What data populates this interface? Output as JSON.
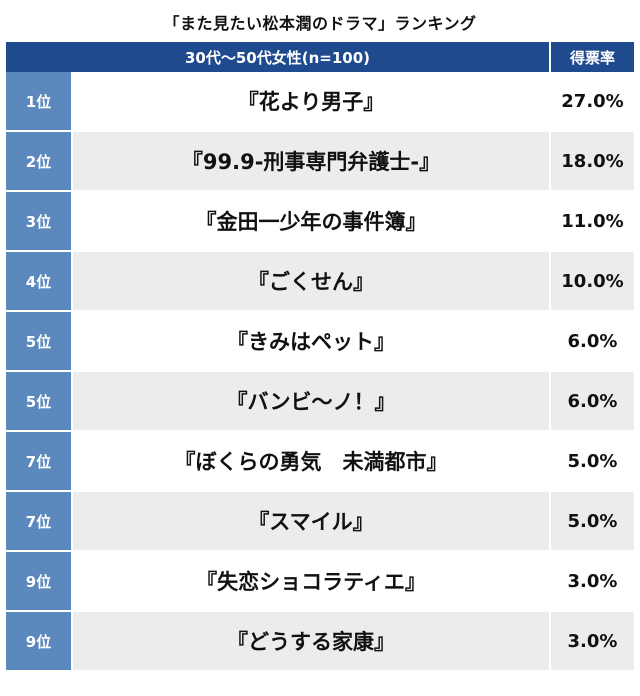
{
  "title": "「また見たい松本潤のドラマ」ランキング",
  "chart_data": {
    "type": "table",
    "title": "「また見たい松本潤のドラマ」ランキング",
    "columns": [
      "30代〜50代女性(n=100)",
      "得票率"
    ],
    "rows": [
      {
        "rank": "1位",
        "drama": "『花より男子』",
        "percent_label": "27.0%",
        "value": 27.0
      },
      {
        "rank": "2位",
        "drama": "『99.9-刑事専門弁護士-』",
        "percent_label": "18.0%",
        "value": 18.0
      },
      {
        "rank": "3位",
        "drama": "『金田一少年の事件簿』",
        "percent_label": "11.0%",
        "value": 11.0
      },
      {
        "rank": "4位",
        "drama": "『ごくせん』",
        "percent_label": "10.0%",
        "value": 10.0
      },
      {
        "rank": "5位",
        "drama": "『きみはペット』",
        "percent_label": "6.0%",
        "value": 6.0
      },
      {
        "rank": "5位",
        "drama": "『バンビ〜ノ！』",
        "percent_label": "6.0%",
        "value": 6.0
      },
      {
        "rank": "7位",
        "drama": "『ぼくらの勇気　未満都市』",
        "percent_label": "5.0%",
        "value": 5.0
      },
      {
        "rank": "7位",
        "drama": "『スマイル』",
        "percent_label": "5.0%",
        "value": 5.0
      },
      {
        "rank": "9位",
        "drama": "『失恋ショコラティエ』",
        "percent_label": "3.0%",
        "value": 3.0
      },
      {
        "rank": "9位",
        "drama": "『どうする家康』",
        "percent_label": "3.0%",
        "value": 3.0
      }
    ]
  },
  "colors": {
    "header_bg": "#1f4a8d",
    "rank_bg": "#5b88bd",
    "row_alt_bg": "#ececec"
  }
}
